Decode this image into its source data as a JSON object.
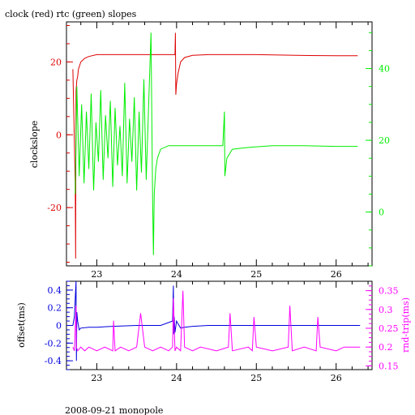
{
  "page": {
    "title": "clock (red) rtc (green) slopes",
    "footer": "2008-09-21 monopole"
  },
  "colors": {
    "clock": "#dd0000",
    "rtc": "#00ee00",
    "offset": "#0000dd",
    "rndtrip": "#ff00ff",
    "frame": "#000000"
  },
  "chart_data": [
    {
      "type": "line",
      "title": "clock (red) rtc (green) slopes",
      "xlim": [
        22.62,
        26.45
      ],
      "x_ticks": [
        23,
        24,
        25,
        26
      ],
      "ylabel": "clockslope",
      "ylim": [
        -36,
        31
      ],
      "y_ticks": [
        -20,
        0,
        20
      ],
      "y2lim": [
        -15,
        53
      ],
      "y2_ticks": [
        0,
        20,
        40
      ],
      "series": [
        {
          "name": "clock",
          "axis": "left",
          "color": "#dd0000",
          "x": [
            22.7,
            22.73,
            22.735,
            22.74,
            22.75,
            22.76,
            22.77,
            22.8,
            22.85,
            22.9,
            23.0,
            23.2,
            23.5,
            23.7,
            23.9,
            23.98,
            23.985,
            23.99,
            24.0,
            24.02,
            24.05,
            24.1,
            24.2,
            24.4,
            24.6,
            25.0,
            25.5,
            26.0,
            26.27
          ],
          "y": [
            18,
            -13,
            -34,
            12,
            15,
            16,
            18,
            20,
            21,
            21.5,
            22,
            22,
            22,
            22,
            22,
            22,
            28,
            11,
            14,
            17,
            20,
            21.2,
            21.8,
            22,
            22,
            22,
            21.8,
            21.7,
            21.7
          ]
        },
        {
          "name": "rtc",
          "axis": "right",
          "color": "#00ee00",
          "x": [
            22.73,
            22.75,
            22.78,
            22.81,
            22.84,
            22.87,
            22.9,
            22.93,
            22.96,
            22.99,
            23.02,
            23.05,
            23.08,
            23.11,
            23.14,
            23.17,
            23.2,
            23.23,
            23.26,
            23.29,
            23.32,
            23.35,
            23.38,
            23.41,
            23.44,
            23.47,
            23.5,
            23.53,
            23.56,
            23.59,
            23.62,
            23.65,
            23.68,
            23.7,
            23.71,
            23.72,
            23.74,
            23.76,
            23.8,
            23.9,
            24.0,
            24.2,
            24.4,
            24.58,
            24.6,
            24.605,
            24.61,
            24.63,
            24.7,
            24.9,
            25.2,
            25.6,
            26.0,
            26.27
          ],
          "y": [
            5,
            35,
            10,
            30,
            8,
            28,
            12,
            33,
            6,
            25,
            14,
            34,
            9,
            27,
            15,
            31,
            7,
            29,
            13,
            24,
            10,
            36,
            8,
            26,
            14,
            32,
            6,
            28,
            11,
            37,
            9,
            30,
            50,
            3,
            -12,
            5,
            12,
            15,
            17.5,
            18.5,
            18.5,
            18.5,
            18.5,
            18.5,
            28,
            10,
            11,
            15,
            17.5,
            18,
            18.5,
            18.5,
            18.3,
            18.3
          ]
        }
      ]
    },
    {
      "type": "line",
      "xlim": [
        22.62,
        26.45
      ],
      "x_ticks": [
        23,
        24,
        25,
        26
      ],
      "ylabel": "offset(ms)",
      "ylim": [
        -0.5,
        0.5
      ],
      "y_ticks": [
        -0.4,
        -0.2,
        0,
        0.2,
        0.4
      ],
      "y2label": "rnd-trip(ms)",
      "y2lim": [
        0.14,
        0.375
      ],
      "y2_ticks": [
        0.15,
        0.2,
        0.25,
        0.3,
        0.35
      ],
      "series": [
        {
          "name": "offset",
          "axis": "left",
          "color": "#0000dd",
          "x": [
            22.7,
            22.72,
            22.74,
            22.745,
            22.75,
            22.76,
            22.78,
            22.8,
            22.9,
            23.0,
            23.2,
            23.5,
            23.8,
            23.95,
            23.96,
            23.965,
            23.97,
            23.98,
            24.0,
            24.05,
            24.1,
            24.2,
            24.4,
            24.6,
            24.8,
            25.0,
            25.3,
            25.6,
            26.0,
            26.3
          ],
          "y": [
            0.0,
            0.1,
            0.5,
            -0.4,
            0.15,
            0.05,
            -0.05,
            -0.03,
            -0.02,
            -0.02,
            -0.01,
            0.0,
            0.0,
            0.05,
            0.45,
            -0.1,
            0.1,
            -0.08,
            0.05,
            -0.03,
            -0.02,
            -0.01,
            0.0,
            0.0,
            0.0,
            0.0,
            0.0,
            0.0,
            0.0,
            0.0
          ]
        },
        {
          "name": "rnd-trip",
          "axis": "right",
          "color": "#ff00ff",
          "x": [
            22.7,
            22.72,
            22.74,
            22.745,
            22.76,
            22.8,
            22.85,
            22.9,
            23.0,
            23.1,
            23.2,
            23.21,
            23.23,
            23.3,
            23.4,
            23.5,
            23.55,
            23.6,
            23.7,
            23.8,
            23.9,
            23.95,
            23.96,
            23.98,
            24.0,
            24.05,
            24.08,
            24.1,
            24.2,
            24.3,
            24.5,
            24.65,
            24.67,
            24.7,
            24.9,
            24.95,
            24.97,
            25.0,
            25.2,
            25.4,
            25.42,
            25.45,
            25.6,
            25.75,
            25.77,
            25.8,
            26.0,
            26.1,
            26.3
          ],
          "y": [
            0.2,
            0.19,
            0.31,
            0.2,
            0.19,
            0.2,
            0.19,
            0.2,
            0.19,
            0.2,
            0.19,
            0.27,
            0.19,
            0.2,
            0.19,
            0.2,
            0.29,
            0.2,
            0.19,
            0.2,
            0.19,
            0.2,
            0.33,
            0.19,
            0.2,
            0.19,
            0.35,
            0.2,
            0.19,
            0.2,
            0.19,
            0.2,
            0.29,
            0.19,
            0.2,
            0.19,
            0.28,
            0.2,
            0.19,
            0.2,
            0.31,
            0.19,
            0.2,
            0.19,
            0.28,
            0.2,
            0.19,
            0.2,
            0.2
          ]
        }
      ]
    }
  ]
}
